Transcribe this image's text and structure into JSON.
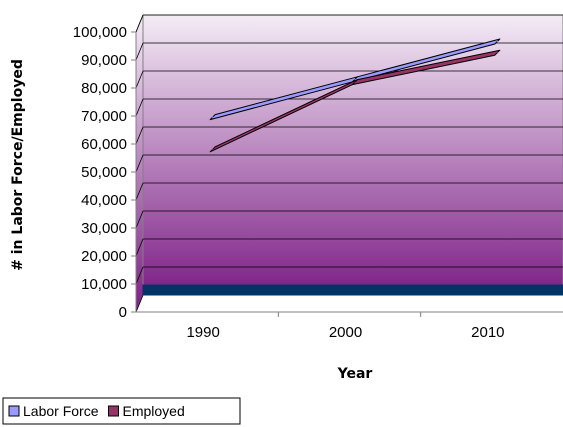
{
  "chart_data": {
    "type": "line",
    "title": "",
    "xlabel": "Year",
    "ylabel": "# in Labor Force/Employed",
    "categories": [
      "1990",
      "2000",
      "2010"
    ],
    "ylim": [
      0,
      100000
    ],
    "y_ticks": [
      "0",
      "10,000",
      "20,000",
      "30,000",
      "40,000",
      "50,000",
      "60,000",
      "70,000",
      "80,000",
      "90,000",
      "100,000"
    ],
    "grid": true,
    "legend_position": "bottom-left",
    "series": [
      {
        "name": "Labor Force",
        "values": [
          65500,
          79000,
          92500
        ],
        "color": "#9999ff"
      },
      {
        "name": "Employed",
        "values": [
          54000,
          78000,
          88500
        ],
        "color": "#993366"
      }
    ],
    "colors": {
      "plot_top": "#f4ecf6",
      "plot_bottom": "#7d1f86",
      "floor": "#003366"
    }
  }
}
